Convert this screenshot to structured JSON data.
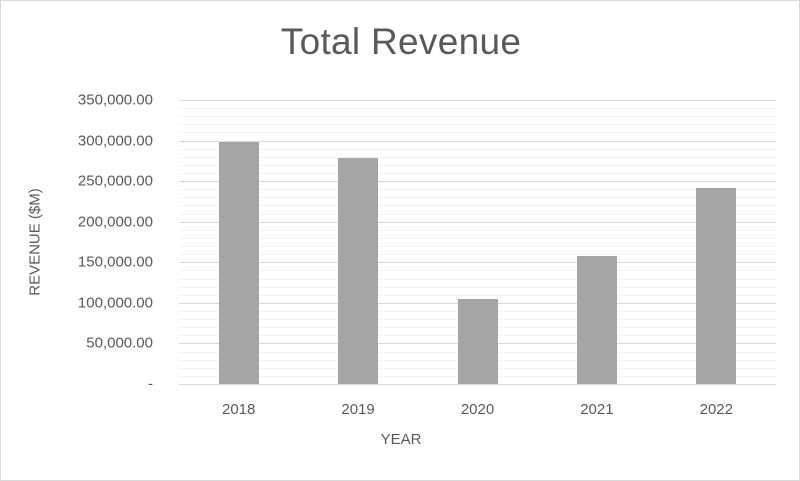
{
  "chart_data": {
    "type": "bar",
    "title": "Total Revenue",
    "xlabel": "YEAR",
    "ylabel": "REVENUE ($M)",
    "categories": [
      "2018",
      "2019",
      "2020",
      "2021",
      "2022"
    ],
    "values": [
      298000,
      278000,
      105000,
      158000,
      241000
    ],
    "ylim": [
      0,
      350000
    ],
    "yticks": [
      0,
      50000,
      100000,
      150000,
      200000,
      250000,
      300000,
      350000
    ],
    "ytick_labels": [
      "-",
      "50,000.00",
      "100,000.00",
      "150,000.00",
      "200,000.00",
      "250,000.00",
      "300,000.00",
      "350,000.00"
    ],
    "grid": {
      "major": true,
      "minor": true,
      "minor_per_major": 4
    },
    "legend": null,
    "bar_color": "#a5a5a5",
    "text_color": "#595959",
    "gridline_major_color": "#d9d9d9",
    "gridline_minor_color": "#f2f2f2"
  }
}
